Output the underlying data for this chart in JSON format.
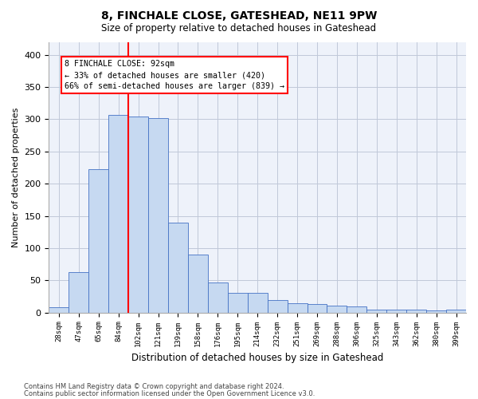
{
  "title1": "8, FINCHALE CLOSE, GATESHEAD, NE11 9PW",
  "title2": "Size of property relative to detached houses in Gateshead",
  "xlabel": "Distribution of detached houses by size in Gateshead",
  "ylabel": "Number of detached properties",
  "bar_values": [
    8,
    63,
    222,
    307,
    304,
    302,
    139,
    90,
    47,
    30,
    30,
    20,
    15,
    13,
    11,
    10,
    5,
    5,
    5,
    3,
    5
  ],
  "bar_labels": [
    "28sqm",
    "47sqm",
    "65sqm",
    "84sqm",
    "102sqm",
    "121sqm",
    "139sqm",
    "158sqm",
    "176sqm",
    "195sqm",
    "214sqm",
    "232sqm",
    "251sqm",
    "269sqm",
    "288sqm",
    "306sqm",
    "325sqm",
    "343sqm",
    "362sqm",
    "380sqm",
    "399sqm"
  ],
  "bar_color": "#c6d9f1",
  "bar_edge_color": "#4472c4",
  "vline_x": 3.5,
  "vline_color": "red",
  "annotation_line1": "8 FINCHALE CLOSE: 92sqm",
  "annotation_line2": "← 33% of detached houses are smaller (420)",
  "annotation_line3": "66% of semi-detached houses are larger (839) →",
  "footer1": "Contains HM Land Registry data © Crown copyright and database right 2024.",
  "footer2": "Contains public sector information licensed under the Open Government Licence v3.0.",
  "ylim": [
    0,
    420
  ],
  "yticks": [
    0,
    50,
    100,
    150,
    200,
    250,
    300,
    350,
    400
  ],
  "grid_color": "#c0c8d8",
  "bg_color": "#eef2fa"
}
